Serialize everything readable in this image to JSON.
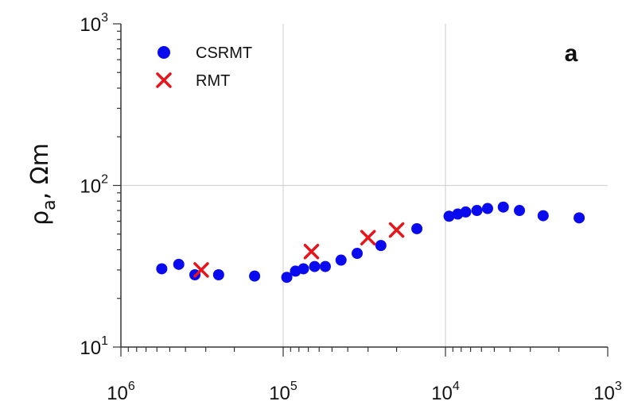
{
  "chart_data": {
    "type": "scatter",
    "title": "",
    "panel_label": "a",
    "xlabel": "",
    "ylabel": "ρa, Ωm",
    "ylabel_parts": {
      "symbol": "ρ",
      "subscript": "a",
      "rest": ", Ωm"
    },
    "x_scale": "log",
    "x_reversed": true,
    "y_scale": "log",
    "xlim": [
      1000000,
      1000
    ],
    "ylim": [
      10,
      1000
    ],
    "grid": true,
    "legend_position": "top-left",
    "x_ticks": [
      {
        "value": 1000000,
        "base": "10",
        "exp": "6"
      },
      {
        "value": 100000,
        "base": "10",
        "exp": "5"
      },
      {
        "value": 10000,
        "base": "10",
        "exp": "4"
      },
      {
        "value": 1000,
        "base": "10",
        "exp": "3"
      }
    ],
    "y_ticks": [
      {
        "value": 10,
        "base": "10",
        "exp": "1"
      },
      {
        "value": 100,
        "base": "10",
        "exp": "2"
      },
      {
        "value": 1000,
        "base": "10",
        "exp": "3"
      }
    ],
    "series": [
      {
        "name": "CSRMT",
        "marker": "circle",
        "color": "#0a0aee",
        "points": [
          {
            "x": 560000,
            "y": 30.5
          },
          {
            "x": 440000,
            "y": 32.5
          },
          {
            "x": 350000,
            "y": 28.0
          },
          {
            "x": 250000,
            "y": 28.0
          },
          {
            "x": 150000,
            "y": 27.5
          },
          {
            "x": 95000,
            "y": 27.0
          },
          {
            "x": 84000,
            "y": 29.5
          },
          {
            "x": 75000,
            "y": 30.5
          },
          {
            "x": 64000,
            "y": 31.5
          },
          {
            "x": 55000,
            "y": 31.5
          },
          {
            "x": 44000,
            "y": 34.5
          },
          {
            "x": 35000,
            "y": 38.0
          },
          {
            "x": 25000,
            "y": 42.5
          },
          {
            "x": 15000,
            "y": 54.0
          },
          {
            "x": 9500,
            "y": 64.5
          },
          {
            "x": 8400,
            "y": 66.5
          },
          {
            "x": 7500,
            "y": 68.5
          },
          {
            "x": 6400,
            "y": 70.0
          },
          {
            "x": 5500,
            "y": 72.0
          },
          {
            "x": 4400,
            "y": 73.5
          },
          {
            "x": 3500,
            "y": 70.0
          },
          {
            "x": 2500,
            "y": 65.0
          },
          {
            "x": 1500,
            "y": 63.0
          }
        ]
      },
      {
        "name": "RMT",
        "marker": "x",
        "color": "#e8141b",
        "points": [
          {
            "x": 320000,
            "y": 30.0
          },
          {
            "x": 67000,
            "y": 39.0
          },
          {
            "x": 30000,
            "y": 47.5
          },
          {
            "x": 20000,
            "y": 53.0
          }
        ]
      }
    ]
  }
}
